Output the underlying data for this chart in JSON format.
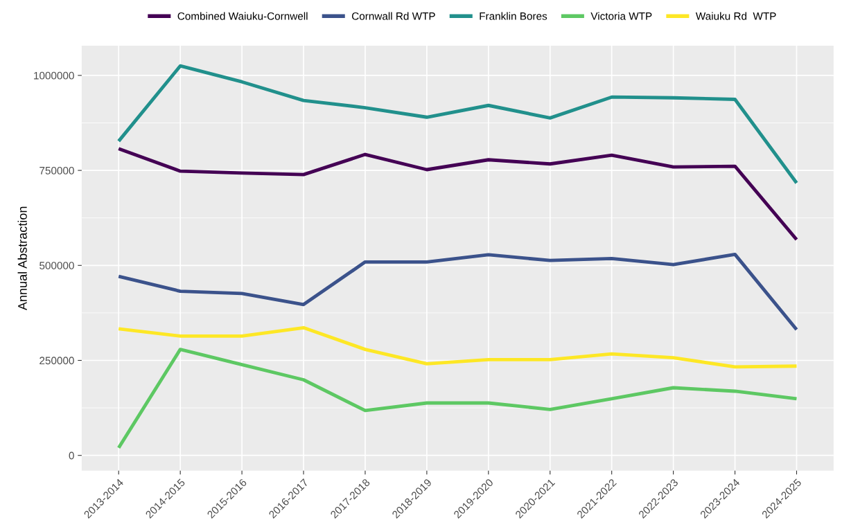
{
  "chart_data": {
    "type": "line",
    "ylabel": "Annual Abstraction",
    "categories": [
      "2013-2014",
      "2014-2015",
      "2015-2016",
      "2016-2017",
      "2017-2018",
      "2018-2019",
      "2019-2020",
      "2020-2021",
      "2021-2022",
      "2022-2023",
      "2023-2024",
      "2024-2025"
    ],
    "series": [
      {
        "name": "Combined Waiuku-Cornwell",
        "color": "#440154",
        "values": [
          807000,
          748000,
          743000,
          739000,
          792000,
          752000,
          778000,
          767000,
          790000,
          759000,
          761000,
          568000
        ]
      },
      {
        "name": "Cornwall Rd WTP",
        "color": "#3b528b",
        "values": [
          471000,
          432000,
          426000,
          397000,
          509000,
          509000,
          528000,
          513000,
          518000,
          502000,
          529000,
          331000
        ]
      },
      {
        "name": "Franklin Bores",
        "color": "#21908c",
        "values": [
          827000,
          1025000,
          983000,
          934000,
          915000,
          890000,
          921000,
          888000,
          943000,
          941000,
          937000,
          717000
        ]
      },
      {
        "name": "Victoria WTP",
        "color": "#5dc863",
        "values": [
          20000,
          279000,
          239000,
          199000,
          118000,
          138000,
          138000,
          121000,
          149000,
          178000,
          169000,
          149000
        ]
      },
      {
        "name": "Waiuku Rd  WTP",
        "color": "#fde725",
        "values": [
          333000,
          314000,
          314000,
          336000,
          279000,
          241000,
          252000,
          252000,
          267000,
          257000,
          233000,
          235000
        ]
      }
    ],
    "ylim": [
      -40000,
      1078000
    ],
    "yticks": [
      0,
      250000,
      500000,
      750000,
      1000000
    ],
    "grid": true,
    "legend": "top",
    "marker": "none",
    "line_style": "solid"
  }
}
